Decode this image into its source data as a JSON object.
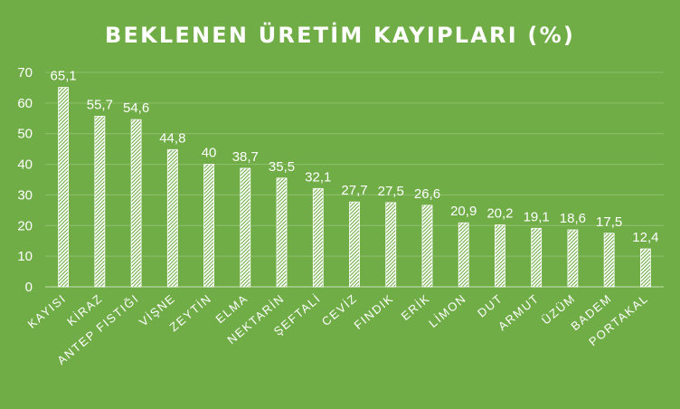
{
  "colors": {
    "background": "#70ad47",
    "bar_fill": "#ffffff",
    "bar_hatch": "#70ad47",
    "text": "#ffffff"
  },
  "chart_data": {
    "type": "bar",
    "title": "BEKLENEN ÜRETİM KAYIPLARI (%)",
    "xlabel": "",
    "ylabel": "",
    "ylim": [
      0,
      70
    ],
    "yticks": [
      0,
      10,
      20,
      30,
      40,
      50,
      60,
      70
    ],
    "grid": true,
    "legend": "none",
    "bar_pattern": "diagonal-hatch",
    "categories": [
      "KAYISI",
      "KİRAZ",
      "ANTEP FISTIĞI",
      "VİŞNE",
      "ZEYTİN",
      "ELMA",
      "NEKTARİN",
      "ŞEFTALİ",
      "CEVİZ",
      "FINDIK",
      "ERİK",
      "LİMON",
      "DUT",
      "ARMUT",
      "ÜZÜM",
      "BADEM",
      "PORTAKAL"
    ],
    "values": [
      65.1,
      55.7,
      54.6,
      44.8,
      40,
      38.7,
      35.5,
      32.1,
      27.7,
      27.5,
      26.6,
      20.9,
      20.2,
      19.1,
      18.6,
      17.5,
      12.4
    ],
    "data_labels": [
      "65,1",
      "55,7",
      "54,6",
      "44,8",
      "40",
      "38,7",
      "35,5",
      "32,1",
      "27,7",
      "27,5",
      "26,6",
      "20,9",
      "20,2",
      "19,1",
      "18,6",
      "17,5",
      "12,4"
    ]
  }
}
